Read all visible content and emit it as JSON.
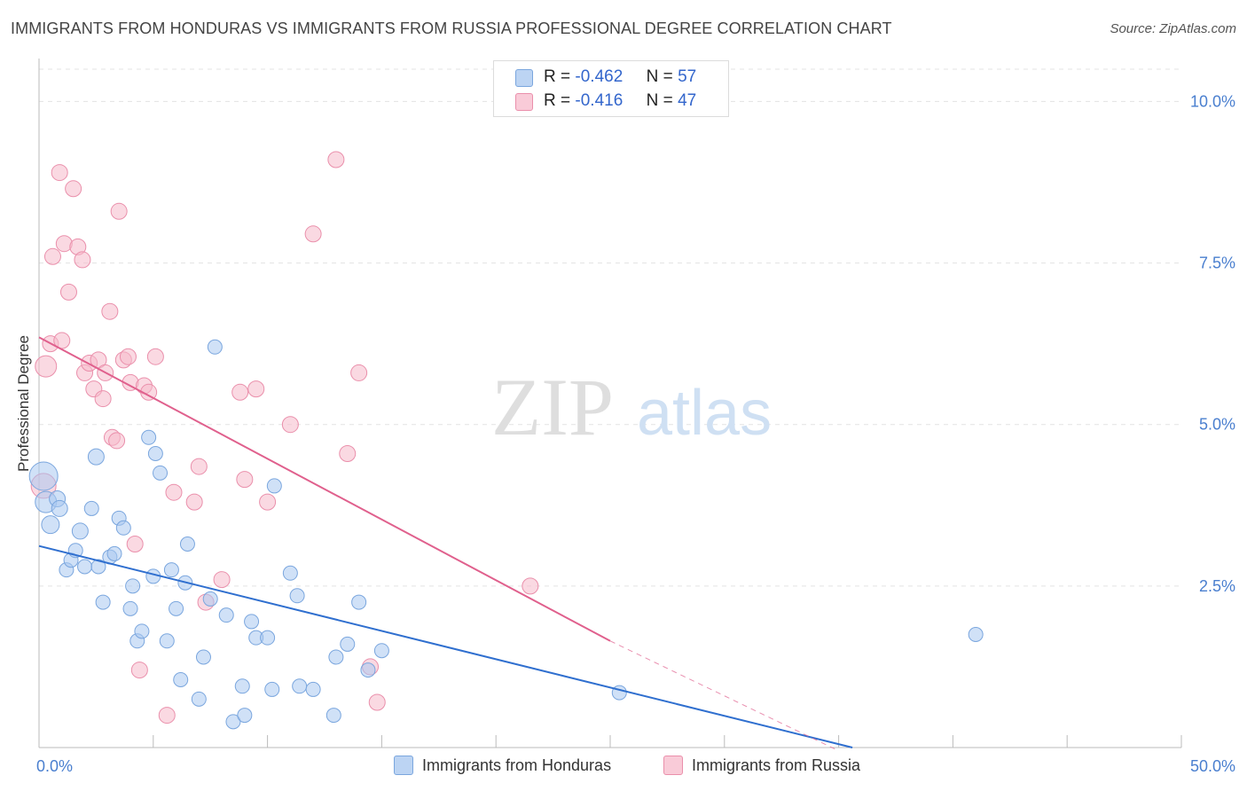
{
  "header": {
    "title": "IMMIGRANTS FROM HONDURAS VS IMMIGRANTS FROM RUSSIA PROFESSIONAL DEGREE CORRELATION CHART",
    "source": "Source: ZipAtlas.com"
  },
  "watermark": {
    "zip": "ZIP",
    "atlas": "atlas"
  },
  "legend": {
    "rows": [
      {
        "r_label": "R =",
        "r_value": "-0.462",
        "n_label": "N =",
        "n_value": "57",
        "color": "#a9c8f0"
      },
      {
        "r_label": "R =",
        "r_value": "-0.416",
        "n_label": "N =",
        "n_value": "47",
        "color": "#f6b9cb"
      }
    ]
  },
  "chart_data": {
    "type": "scatter",
    "title": "IMMIGRANTS FROM HONDURAS VS IMMIGRANTS FROM RUSSIA PROFESSIONAL DEGREE CORRELATION CHART",
    "xlabel": "",
    "ylabel": "Professional Degree",
    "xlim": [
      0,
      50
    ],
    "ylim": [
      0,
      10.5
    ],
    "x_tick_labels": [
      "0.0%",
      "50.0%"
    ],
    "y_ticks": [
      {
        "value": 2.5,
        "label": "2.5%"
      },
      {
        "value": 5.0,
        "label": "5.0%"
      },
      {
        "value": 7.5,
        "label": "7.5%"
      },
      {
        "value": 10.0,
        "label": "10.0%"
      }
    ],
    "grid": true,
    "series": [
      {
        "name": "Immigrants from Honduras",
        "color": "#a9c8f0",
        "stroke": "#7aa6de",
        "line_color": "#2f6fcf",
        "trend": {
          "x0": 0,
          "y0": 3.12,
          "x1": 35.6,
          "y1": 0.0
        },
        "points": [
          [
            0.2,
            4.2,
            16
          ],
          [
            0.3,
            3.8,
            12
          ],
          [
            0.5,
            3.45,
            10
          ],
          [
            0.8,
            3.85,
            9
          ],
          [
            0.9,
            3.7,
            9
          ],
          [
            1.2,
            2.75,
            8
          ],
          [
            1.4,
            2.9,
            8
          ],
          [
            1.6,
            3.05,
            8
          ],
          [
            1.8,
            3.35,
            9
          ],
          [
            2.0,
            2.8,
            8
          ],
          [
            2.3,
            3.7,
            8
          ],
          [
            2.5,
            4.5,
            9
          ],
          [
            2.6,
            2.8,
            8
          ],
          [
            2.8,
            2.25,
            8
          ],
          [
            3.1,
            2.95,
            8
          ],
          [
            3.3,
            3.0,
            8
          ],
          [
            3.5,
            3.55,
            8
          ],
          [
            3.7,
            3.4,
            8
          ],
          [
            4.0,
            2.15,
            8
          ],
          [
            4.1,
            2.5,
            8
          ],
          [
            4.3,
            1.65,
            8
          ],
          [
            4.5,
            1.8,
            8
          ],
          [
            4.8,
            4.8,
            8
          ],
          [
            5.0,
            2.65,
            8
          ],
          [
            5.1,
            4.55,
            8
          ],
          [
            5.3,
            4.25,
            8
          ],
          [
            5.6,
            1.65,
            8
          ],
          [
            5.8,
            2.75,
            8
          ],
          [
            6.0,
            2.15,
            8
          ],
          [
            6.2,
            1.05,
            8
          ],
          [
            6.4,
            2.55,
            8
          ],
          [
            6.5,
            3.15,
            8
          ],
          [
            7.0,
            0.75,
            8
          ],
          [
            7.2,
            1.4,
            8
          ],
          [
            7.5,
            2.3,
            8
          ],
          [
            7.7,
            6.2,
            8
          ],
          [
            8.2,
            2.05,
            8
          ],
          [
            8.5,
            0.4,
            8
          ],
          [
            8.9,
            0.95,
            8
          ],
          [
            9.0,
            0.5,
            8
          ],
          [
            9.3,
            1.95,
            8
          ],
          [
            9.5,
            1.7,
            8
          ],
          [
            10.0,
            1.7,
            8
          ],
          [
            10.2,
            0.9,
            8
          ],
          [
            10.3,
            4.05,
            8
          ],
          [
            11.0,
            2.7,
            8
          ],
          [
            11.3,
            2.35,
            8
          ],
          [
            11.4,
            0.95,
            8
          ],
          [
            12.0,
            0.9,
            8
          ],
          [
            12.9,
            0.5,
            8
          ],
          [
            13.0,
            1.4,
            8
          ],
          [
            13.5,
            1.6,
            8
          ],
          [
            14.0,
            2.25,
            8
          ],
          [
            14.4,
            1.2,
            8
          ],
          [
            15.0,
            1.5,
            8
          ],
          [
            25.4,
            0.85,
            8
          ],
          [
            41.0,
            1.75,
            8
          ]
        ]
      },
      {
        "name": "Immigrants from Russia",
        "color": "#f6b9cb",
        "stroke": "#ea8fab",
        "line_color": "#e0608d",
        "trend": {
          "x0": 0,
          "y0": 6.35,
          "x1": 25.0,
          "y1": 1.65
        },
        "trend_dashed": {
          "x0": 25.0,
          "y0": 1.65,
          "x1": 35.0,
          "y1": -0.05
        },
        "points": [
          [
            0.2,
            4.05,
            14
          ],
          [
            0.3,
            5.9,
            12
          ],
          [
            0.5,
            6.25,
            9
          ],
          [
            0.6,
            7.6,
            9
          ],
          [
            0.9,
            8.9,
            9
          ],
          [
            1.0,
            6.3,
            9
          ],
          [
            1.1,
            7.8,
            9
          ],
          [
            1.3,
            7.05,
            9
          ],
          [
            1.5,
            8.65,
            9
          ],
          [
            1.7,
            7.75,
            9
          ],
          [
            1.9,
            7.55,
            9
          ],
          [
            2.0,
            5.8,
            9
          ],
          [
            2.2,
            5.95,
            9
          ],
          [
            2.4,
            5.55,
            9
          ],
          [
            2.6,
            6.0,
            9
          ],
          [
            2.8,
            5.4,
            9
          ],
          [
            2.9,
            5.8,
            9
          ],
          [
            3.1,
            6.75,
            9
          ],
          [
            3.2,
            4.8,
            9
          ],
          [
            3.4,
            4.75,
            9
          ],
          [
            3.5,
            8.3,
            9
          ],
          [
            3.7,
            6.0,
            9
          ],
          [
            3.9,
            6.05,
            9
          ],
          [
            4.0,
            5.65,
            9
          ],
          [
            4.2,
            3.15,
            9
          ],
          [
            4.4,
            1.2,
            9
          ],
          [
            4.6,
            5.6,
            9
          ],
          [
            4.8,
            5.5,
            9
          ],
          [
            5.1,
            6.05,
            9
          ],
          [
            5.6,
            0.5,
            9
          ],
          [
            5.9,
            3.95,
            9
          ],
          [
            6.8,
            3.8,
            9
          ],
          [
            7.0,
            4.35,
            9
          ],
          [
            7.3,
            2.25,
            9
          ],
          [
            8.0,
            2.6,
            9
          ],
          [
            8.8,
            5.5,
            9
          ],
          [
            9.0,
            4.15,
            9
          ],
          [
            9.5,
            5.55,
            9
          ],
          [
            10.0,
            3.8,
            9
          ],
          [
            11.0,
            5.0,
            9
          ],
          [
            12.0,
            7.95,
            9
          ],
          [
            13.0,
            9.1,
            9
          ],
          [
            13.5,
            4.55,
            9
          ],
          [
            14.0,
            5.8,
            9
          ],
          [
            14.5,
            1.25,
            9
          ],
          [
            14.8,
            0.7,
            9
          ],
          [
            21.5,
            2.5,
            9
          ]
        ]
      }
    ]
  }
}
